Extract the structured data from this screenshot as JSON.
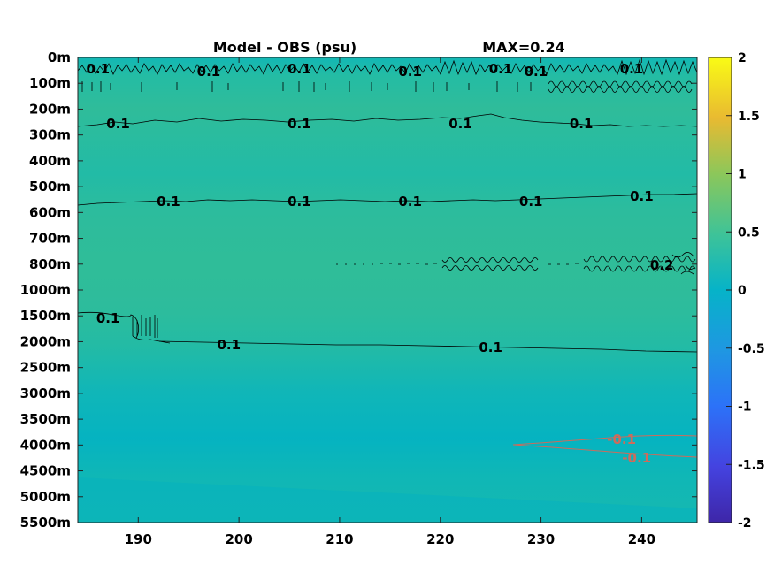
{
  "chart_data": {
    "type": "heatmap",
    "title_left": "Model - OBS (psu)",
    "title_right": "MAX=0.24",
    "x": {
      "ticks": [
        190,
        200,
        210,
        220,
        230,
        240
      ],
      "range": [
        184,
        245.5
      ]
    },
    "y": {
      "tick_labels": [
        "0m",
        "100m",
        "200m",
        "300m",
        "400m",
        "500m",
        "600m",
        "700m",
        "800m",
        "1000m",
        "1500m",
        "2000m",
        "2500m",
        "3000m",
        "3500m",
        "4000m",
        "4500m",
        "5000m",
        "5500m"
      ]
    },
    "colorbar": {
      "range": [
        -2,
        2
      ],
      "ticks": [
        2,
        1.5,
        1,
        0.5,
        0,
        -0.5,
        -1,
        -1.5,
        -2
      ],
      "tick_labels": [
        "2",
        "1.5",
        "1",
        "0.5",
        "0",
        "-0.5",
        "-1",
        "-1.5",
        "-2"
      ],
      "colormap": "parula"
    },
    "contours": [
      {
        "level": 0.1,
        "color": "#000000",
        "depth": "~20m",
        "labels": [
          {
            "x": 186,
            "text": "0.1"
          },
          {
            "x": 197,
            "text": "0.1"
          },
          {
            "x": 206,
            "text": "0.1"
          },
          {
            "x": 217,
            "text": "0.1"
          },
          {
            "x": 226,
            "text": "0.1"
          },
          {
            "x": 229.5,
            "text": "0.1"
          },
          {
            "x": 239,
            "text": "0.1"
          }
        ]
      },
      {
        "level": 0.1,
        "color": "#000000",
        "depth": "~250m",
        "labels": [
          {
            "x": 188,
            "text": "0.1"
          },
          {
            "x": 206,
            "text": "0.1"
          },
          {
            "x": 222,
            "text": "0.1"
          },
          {
            "x": 234,
            "text": "0.1"
          }
        ]
      },
      {
        "level": 0.1,
        "color": "#000000",
        "depth": "~570m",
        "labels": [
          {
            "x": 193,
            "text": "0.1"
          },
          {
            "x": 206,
            "text": "0.1"
          },
          {
            "x": 217,
            "text": "0.1"
          },
          {
            "x": 229,
            "text": "0.1"
          },
          {
            "x": 240,
            "text": "0.1"
          }
        ]
      },
      {
        "level": 0.1,
        "color": "#000000",
        "depth": "~1600-2000m",
        "labels": [
          {
            "x": 187,
            "text": "0.1"
          },
          {
            "x": 199,
            "text": "0.1"
          },
          {
            "x": 225,
            "text": "0.1"
          }
        ]
      },
      {
        "level": 0.2,
        "color": "#000000",
        "depth": "~800m",
        "labels": [
          {
            "x": 242,
            "text": "0.2"
          }
        ]
      },
      {
        "level": -0.1,
        "color": "#cc6c5c",
        "depth": "~4000m",
        "labels": [
          {
            "x": 238,
            "text": "-0.1"
          },
          {
            "x": 239.5,
            "text": "-0.1"
          }
        ]
      }
    ]
  }
}
